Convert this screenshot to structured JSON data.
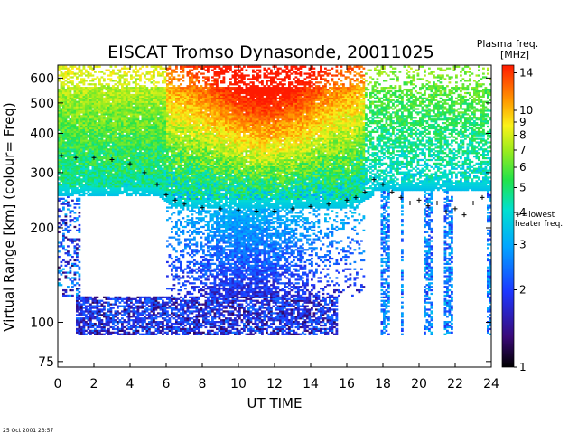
{
  "chart_data": {
    "type": "heatmap",
    "title": "EISCAT Tromso Dynasonde,  20011025",
    "xlabel": "UT TIME",
    "ylabel": "Virtual Range [km]   (colour= Freq)",
    "x_ticks": [
      0,
      2,
      4,
      6,
      8,
      10,
      12,
      14,
      16,
      18,
      20,
      22,
      24
    ],
    "y_ticks": [
      75,
      100,
      200,
      300,
      400,
      500,
      600
    ],
    "xlim": [
      0,
      24
    ],
    "ylim": [
      72,
      660
    ],
    "y_scale": "log",
    "colorbar": {
      "title_line1": "Plasma freq.",
      "title_line2": "[MHz]",
      "ticks": [
        1,
        2,
        3,
        4,
        5,
        6,
        7,
        8,
        9,
        10,
        14
      ],
      "range": [
        1,
        15
      ],
      "scale": "log",
      "marker_label_line1": "+=lowest",
      "marker_label_line2": "heater freq."
    },
    "series": [
      {
        "name": "heater freq.",
        "marker": "+",
        "x": [
          0.2,
          1.0,
          2.0,
          3.0,
          4.0,
          4.8,
          5.5,
          6.0,
          6.5,
          7.0,
          8.0,
          9.0,
          10.0,
          11.0,
          12.0,
          13.0,
          14.0,
          15.0,
          16.0,
          16.5,
          17.0,
          17.5,
          18.0,
          18.5,
          19.0,
          19.5,
          20.0,
          20.5,
          21.0,
          21.5,
          22.0,
          22.5,
          23.0,
          23.5
        ],
        "y": [
          340,
          335,
          335,
          330,
          320,
          300,
          275,
          255,
          245,
          238,
          232,
          230,
          228,
          226,
          226,
          230,
          234,
          238,
          245,
          250,
          260,
          285,
          275,
          260,
          250,
          240,
          245,
          235,
          240,
          225,
          230,
          220,
          240,
          250
        ]
      }
    ],
    "footer_timestamp": "25 Oct 2001  23:57"
  }
}
